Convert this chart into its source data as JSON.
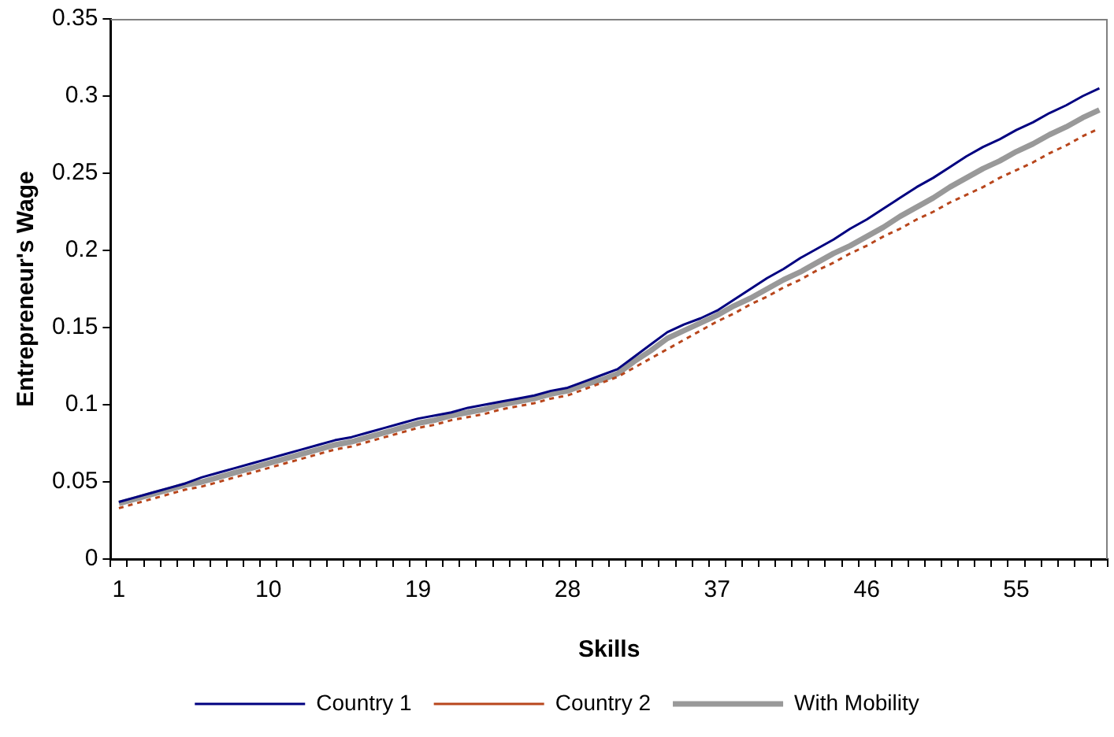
{
  "chart_data": {
    "type": "line",
    "xlabel": "Skills",
    "ylabel": "Entrepreneur's Wage",
    "categories": [
      "1",
      null,
      null,
      null,
      null,
      null,
      null,
      null,
      null,
      "10",
      null,
      null,
      null,
      null,
      null,
      null,
      null,
      null,
      "19",
      null,
      null,
      null,
      null,
      null,
      null,
      null,
      null,
      "28",
      null,
      null,
      null,
      null,
      null,
      null,
      null,
      null,
      "37",
      null,
      null,
      null,
      null,
      null,
      null,
      null,
      null,
      "46",
      null,
      null,
      null,
      null,
      null,
      null,
      null,
      null,
      "55",
      null,
      null,
      null,
      null,
      null
    ],
    "ylim": [
      0,
      0.35
    ],
    "yticks": [
      0,
      0.05,
      0.1,
      0.15,
      0.2,
      0.25,
      0.3,
      0.35
    ],
    "grid": false,
    "legend": "bottom",
    "marker": "none",
    "series": [
      {
        "name": "Country 1",
        "color": "#000080",
        "line_style": "solid",
        "values": [
          0.037,
          0.04,
          0.043,
          0.046,
          0.049,
          0.053,
          0.056,
          0.059,
          0.062,
          0.065,
          0.068,
          0.071,
          0.074,
          0.077,
          0.079,
          0.082,
          0.085,
          0.088,
          0.091,
          0.093,
          0.095,
          0.098,
          0.1,
          0.102,
          0.104,
          0.106,
          0.109,
          0.111,
          0.115,
          0.119,
          0.123,
          0.131,
          0.139,
          0.147,
          0.152,
          0.156,
          0.161,
          0.168,
          0.175,
          0.182,
          0.188,
          0.195,
          0.201,
          0.207,
          0.214,
          0.22,
          0.227,
          0.234,
          0.241,
          0.247,
          0.254,
          0.261,
          0.267,
          0.272,
          0.278,
          0.283,
          0.289,
          0.294,
          0.3,
          0.305
        ]
      },
      {
        "name": "Country 2",
        "color": "#b8461c",
        "line_style": "dotted",
        "values": [
          0.033,
          0.036,
          0.039,
          0.042,
          0.045,
          0.047,
          0.05,
          0.053,
          0.056,
          0.059,
          0.062,
          0.065,
          0.068,
          0.071,
          0.073,
          0.076,
          0.079,
          0.082,
          0.085,
          0.087,
          0.09,
          0.092,
          0.094,
          0.097,
          0.099,
          0.101,
          0.104,
          0.106,
          0.11,
          0.114,
          0.118,
          0.124,
          0.13,
          0.136,
          0.142,
          0.148,
          0.154,
          0.159,
          0.165,
          0.17,
          0.176,
          0.181,
          0.187,
          0.192,
          0.198,
          0.203,
          0.209,
          0.214,
          0.22,
          0.225,
          0.231,
          0.236,
          0.241,
          0.247,
          0.252,
          0.257,
          0.263,
          0.268,
          0.274,
          0.279
        ]
      },
      {
        "name": "With Mobility",
        "color": "#999999",
        "line_style": "solid",
        "values": [
          0.036,
          0.039,
          0.042,
          0.045,
          0.048,
          0.05,
          0.053,
          0.056,
          0.059,
          0.062,
          0.065,
          0.068,
          0.071,
          0.074,
          0.076,
          0.079,
          0.082,
          0.085,
          0.088,
          0.09,
          0.093,
          0.095,
          0.097,
          0.1,
          0.102,
          0.104,
          0.107,
          0.109,
          0.113,
          0.116,
          0.12,
          0.128,
          0.135,
          0.143,
          0.148,
          0.153,
          0.158,
          0.164,
          0.169,
          0.175,
          0.181,
          0.186,
          0.192,
          0.198,
          0.203,
          0.209,
          0.215,
          0.222,
          0.228,
          0.234,
          0.241,
          0.247,
          0.253,
          0.258,
          0.264,
          0.269,
          0.275,
          0.28,
          0.286,
          0.291
        ]
      }
    ]
  }
}
